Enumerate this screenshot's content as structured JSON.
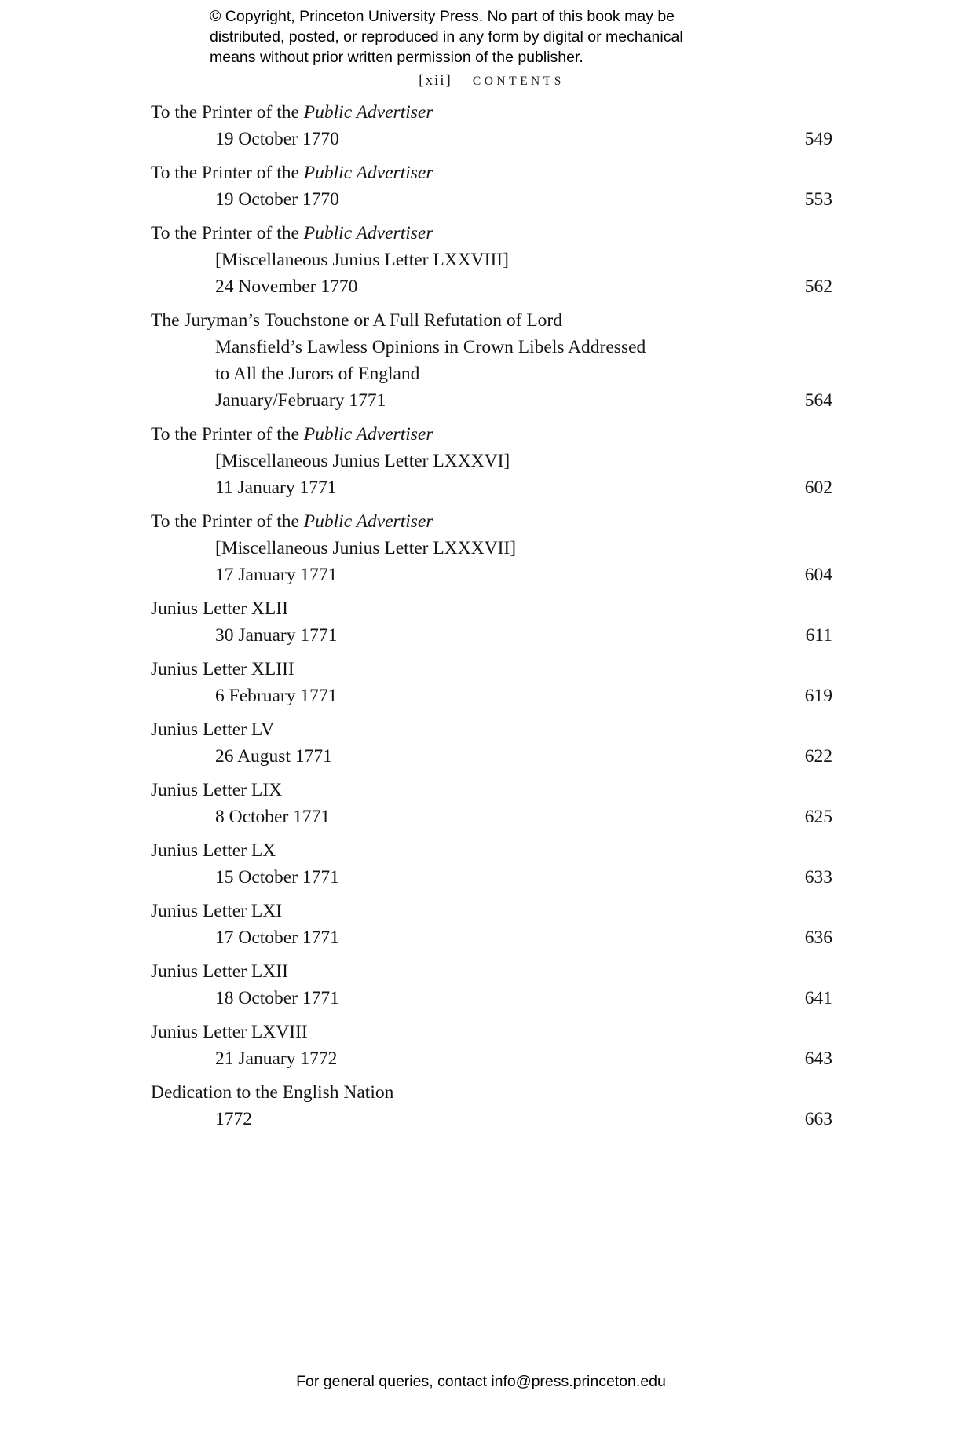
{
  "copyright_notice": {
    "lines": [
      "© Copyright, Princeton University Press. No part of this book may be",
      "distributed, posted, or reproduced in any form by digital or mechanical",
      "means without prior written permission of the publisher."
    ]
  },
  "header": {
    "folio": "[xii]",
    "title": "CONTENTS"
  },
  "toc": {
    "entries": [
      {
        "title_lines": [
          {
            "indent": false,
            "parts": [
              {
                "t": "To the Printer of the ",
                "i": false
              },
              {
                "t": "Public Advertiser",
                "i": true
              }
            ]
          }
        ],
        "date": "19 October 1770",
        "page": "549"
      },
      {
        "title_lines": [
          {
            "indent": false,
            "parts": [
              {
                "t": "To the Printer of the ",
                "i": false
              },
              {
                "t": "Public Advertiser",
                "i": true
              }
            ]
          }
        ],
        "date": "19 October 1770",
        "page": "553"
      },
      {
        "title_lines": [
          {
            "indent": false,
            "parts": [
              {
                "t": "To the Printer of the ",
                "i": false
              },
              {
                "t": "Public Advertiser",
                "i": true
              }
            ]
          },
          {
            "indent": true,
            "parts": [
              {
                "t": "[Miscellaneous Junius Letter LXXVIII]",
                "i": false
              }
            ]
          }
        ],
        "date": "24 November 1770",
        "page": "562"
      },
      {
        "title_lines": [
          {
            "indent": false,
            "parts": [
              {
                "t": "The Juryman’s Touchstone or A Full Refutation of Lord",
                "i": false
              }
            ]
          },
          {
            "indent": true,
            "parts": [
              {
                "t": "Mansfield’s Lawless Opinions in Crown Libels Addressed",
                "i": false
              }
            ]
          },
          {
            "indent": true,
            "parts": [
              {
                "t": "to All the Jurors of England",
                "i": false
              }
            ]
          }
        ],
        "date": "January/February 1771",
        "page": "564"
      },
      {
        "title_lines": [
          {
            "indent": false,
            "parts": [
              {
                "t": "To the Printer of the ",
                "i": false
              },
              {
                "t": "Public Advertiser",
                "i": true
              }
            ]
          },
          {
            "indent": true,
            "parts": [
              {
                "t": "[Miscellaneous Junius Letter LXXXVI]",
                "i": false
              }
            ]
          }
        ],
        "date": "11 January 1771",
        "page": "602"
      },
      {
        "title_lines": [
          {
            "indent": false,
            "parts": [
              {
                "t": "To the Printer of the ",
                "i": false
              },
              {
                "t": "Public Advertiser",
                "i": true
              }
            ]
          },
          {
            "indent": true,
            "parts": [
              {
                "t": "[Miscellaneous Junius Letter LXXXVII]",
                "i": false
              }
            ]
          }
        ],
        "date": "17 January 1771",
        "page": "604"
      },
      {
        "title_lines": [
          {
            "indent": false,
            "parts": [
              {
                "t": "Junius Letter XLII",
                "i": false
              }
            ]
          }
        ],
        "date": "30 January 1771",
        "page": "611"
      },
      {
        "title_lines": [
          {
            "indent": false,
            "parts": [
              {
                "t": "Junius Letter XLIII",
                "i": false
              }
            ]
          }
        ],
        "date": "6 February 1771",
        "page": "619"
      },
      {
        "title_lines": [
          {
            "indent": false,
            "parts": [
              {
                "t": "Junius Letter LV",
                "i": false
              }
            ]
          }
        ],
        "date": "26 August 1771",
        "page": "622"
      },
      {
        "title_lines": [
          {
            "indent": false,
            "parts": [
              {
                "t": "Junius Letter LIX",
                "i": false
              }
            ]
          }
        ],
        "date": "8 October 1771",
        "page": "625"
      },
      {
        "title_lines": [
          {
            "indent": false,
            "parts": [
              {
                "t": "Junius Letter LX",
                "i": false
              }
            ]
          }
        ],
        "date": "15 October 1771",
        "page": "633"
      },
      {
        "title_lines": [
          {
            "indent": false,
            "parts": [
              {
                "t": "Junius Letter LXI",
                "i": false
              }
            ]
          }
        ],
        "date": "17 October 1771",
        "page": "636"
      },
      {
        "title_lines": [
          {
            "indent": false,
            "parts": [
              {
                "t": "Junius Letter LXII",
                "i": false
              }
            ]
          }
        ],
        "date": "18 October 1771",
        "page": "641"
      },
      {
        "title_lines": [
          {
            "indent": false,
            "parts": [
              {
                "t": "Junius Letter LXVIII",
                "i": false
              }
            ]
          }
        ],
        "date": "21 January 1772",
        "page": "643"
      },
      {
        "title_lines": [
          {
            "indent": false,
            "parts": [
              {
                "t": "Dedication to the English Nation",
                "i": false
              }
            ]
          }
        ],
        "date": "1772",
        "page": "663"
      }
    ]
  },
  "footer": {
    "text": "For general queries, contact info@press.princeton.edu"
  }
}
